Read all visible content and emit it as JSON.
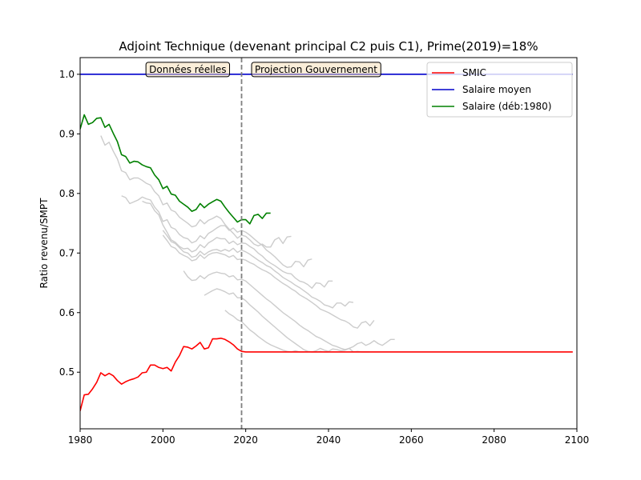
{
  "chart_data": {
    "type": "line",
    "title": "Adjoint Technique (devenant principal C2 puis C1), Prime(2019)=18%",
    "xlabel": "",
    "ylabel": "Ratio revenu/SMPT",
    "xlim": [
      1980,
      2100
    ],
    "ylim": [
      0.405,
      1.028
    ],
    "xticks": [
      1980,
      2000,
      2020,
      2040,
      2060,
      2080,
      2100
    ],
    "yticks": [
      0.5,
      0.6,
      0.7,
      0.8,
      0.9,
      1.0
    ],
    "grid": false,
    "legend_placement": "top-right",
    "vline": {
      "x": 2019,
      "color": "#808080",
      "style": "dashed"
    },
    "annotations": [
      {
        "text": "Données réelles",
        "x": 2006,
        "y": 1.008
      },
      {
        "text": "Projection Gouvernement",
        "x": 2037,
        "y": 1.008
      }
    ],
    "series": [
      {
        "name": "SMIC",
        "color": "#ff0000",
        "x": [
          1980,
          1981,
          1982,
          1983,
          1984,
          1985,
          1986,
          1987,
          1988,
          1989,
          1990,
          1991,
          1992,
          1993,
          1994,
          1995,
          1996,
          1997,
          1998,
          1999,
          2000,
          2001,
          2002,
          2003,
          2004,
          2005,
          2006,
          2007,
          2008,
          2009,
          2010,
          2011,
          2012,
          2013,
          2014,
          2015,
          2016,
          2017,
          2018,
          2019,
          2020,
          2030,
          2040,
          2050,
          2060,
          2070,
          2080,
          2090,
          2099
        ],
        "y": [
          0.435,
          0.462,
          0.463,
          0.472,
          0.483,
          0.499,
          0.494,
          0.498,
          0.494,
          0.486,
          0.48,
          0.484,
          0.487,
          0.489,
          0.492,
          0.499,
          0.5,
          0.512,
          0.512,
          0.508,
          0.506,
          0.508,
          0.502,
          0.517,
          0.528,
          0.543,
          0.542,
          0.539,
          0.544,
          0.55,
          0.539,
          0.541,
          0.556,
          0.556,
          0.557,
          0.555,
          0.551,
          0.546,
          0.539,
          0.535,
          0.534,
          0.534,
          0.534,
          0.534,
          0.534,
          0.534,
          0.534,
          0.534,
          0.534
        ]
      },
      {
        "name": "Salaire moyen",
        "color": "#0000cc",
        "x": [
          1980,
          2099
        ],
        "y": [
          1.0,
          1.0
        ]
      },
      {
        "name": "Salaire (déb:1980)",
        "color": "#008000",
        "x": [
          1980,
          1981,
          1982,
          1983,
          1984,
          1985,
          1986,
          1987,
          1988,
          1989,
          1990,
          1991,
          1992,
          1993,
          1994,
          1995,
          1996,
          1997,
          1998,
          1999,
          2000,
          2001,
          2002,
          2003,
          2004,
          2005,
          2006,
          2007,
          2008,
          2009,
          2010,
          2011,
          2012,
          2013,
          2014,
          2015,
          2016,
          2017,
          2018,
          2019,
          2020,
          2021,
          2022,
          2023,
          2024,
          2025,
          2026
        ],
        "y": [
          0.908,
          0.932,
          0.916,
          0.919,
          0.926,
          0.927,
          0.911,
          0.916,
          0.901,
          0.887,
          0.865,
          0.862,
          0.851,
          0.854,
          0.853,
          0.848,
          0.845,
          0.843,
          0.831,
          0.823,
          0.808,
          0.812,
          0.799,
          0.797,
          0.787,
          0.782,
          0.777,
          0.77,
          0.773,
          0.783,
          0.776,
          0.782,
          0.786,
          0.79,
          0.787,
          0.777,
          0.768,
          0.76,
          0.752,
          0.756,
          0.756,
          0.749,
          0.763,
          0.765,
          0.758,
          0.767,
          0.767
        ]
      },
      {
        "name": "",
        "color": "#cccccc",
        "x": [
          1985,
          1986,
          1987,
          1988,
          1989,
          1990,
          1991,
          1992,
          1993,
          1994,
          1995,
          1996,
          1997,
          1998,
          1999,
          2000,
          2001,
          2002,
          2003,
          2004,
          2005,
          2006,
          2007,
          2008,
          2009,
          2010,
          2011,
          2012,
          2013,
          2014,
          2015,
          2016,
          2017,
          2018,
          2019,
          2020,
          2021,
          2022,
          2023,
          2024,
          2025,
          2026,
          2027,
          2028,
          2029,
          2030,
          2031
        ],
        "y": [
          0.897,
          0.881,
          0.886,
          0.871,
          0.858,
          0.838,
          0.835,
          0.823,
          0.826,
          0.826,
          0.822,
          0.817,
          0.814,
          0.803,
          0.796,
          0.781,
          0.784,
          0.772,
          0.769,
          0.76,
          0.755,
          0.75,
          0.744,
          0.746,
          0.756,
          0.749,
          0.755,
          0.758,
          0.762,
          0.758,
          0.748,
          0.74,
          0.733,
          0.725,
          0.73,
          0.728,
          0.722,
          0.715,
          0.712,
          0.715,
          0.71,
          0.71,
          0.722,
          0.726,
          0.716,
          0.727,
          0.728
        ]
      },
      {
        "name": "",
        "color": "#cccccc",
        "x": [
          1990,
          1991,
          1992,
          1993,
          1994,
          1995,
          1996,
          1997,
          1998,
          1999,
          2000,
          2001,
          2002,
          2003,
          2004,
          2005,
          2006,
          2007,
          2008,
          2009,
          2010,
          2011,
          2012,
          2013,
          2014,
          2015,
          2016,
          2017,
          2018,
          2019,
          2020,
          2021,
          2022,
          2023,
          2024,
          2025,
          2026,
          2027,
          2028,
          2029,
          2030,
          2031,
          2032,
          2033,
          2034,
          2035,
          2036
        ],
        "y": [
          0.796,
          0.793,
          0.783,
          0.786,
          0.789,
          0.794,
          0.791,
          0.789,
          0.777,
          0.769,
          0.753,
          0.756,
          0.743,
          0.74,
          0.731,
          0.726,
          0.724,
          0.717,
          0.72,
          0.729,
          0.724,
          0.733,
          0.737,
          0.742,
          0.746,
          0.746,
          0.738,
          0.742,
          0.735,
          0.738,
          0.735,
          0.73,
          0.724,
          0.718,
          0.713,
          0.705,
          0.7,
          0.694,
          0.687,
          0.68,
          0.676,
          0.677,
          0.686,
          0.685,
          0.677,
          0.688,
          0.69
        ]
      },
      {
        "name": "",
        "color": "#cccccc",
        "x": [
          1995,
          1996,
          1997,
          1998,
          1999,
          2000,
          2001,
          2002,
          2003,
          2004,
          2005,
          2006,
          2007,
          2008,
          2009,
          2010,
          2011,
          2012,
          2013,
          2014,
          2015,
          2016,
          2017,
          2018,
          2019,
          2020,
          2021,
          2022,
          2023,
          2024,
          2025,
          2026,
          2027,
          2028,
          2029,
          2030,
          2031,
          2032,
          2033,
          2034,
          2035,
          2036,
          2037,
          2038,
          2039,
          2040,
          2041
        ],
        "y": [
          0.787,
          0.784,
          0.783,
          0.771,
          0.764,
          0.747,
          0.735,
          0.722,
          0.718,
          0.711,
          0.707,
          0.708,
          0.702,
          0.705,
          0.714,
          0.709,
          0.717,
          0.721,
          0.726,
          0.724,
          0.724,
          0.716,
          0.72,
          0.714,
          0.717,
          0.716,
          0.711,
          0.707,
          0.7,
          0.695,
          0.688,
          0.683,
          0.679,
          0.674,
          0.669,
          0.666,
          0.665,
          0.658,
          0.653,
          0.651,
          0.647,
          0.641,
          0.65,
          0.649,
          0.643,
          0.653,
          0.653
        ]
      },
      {
        "name": "",
        "color": "#cccccc",
        "x": [
          2000,
          2001,
          2002,
          2003,
          2004,
          2005,
          2006,
          2007,
          2008,
          2009,
          2010,
          2011,
          2012,
          2013,
          2014,
          2015,
          2016,
          2017,
          2018,
          2019,
          2020,
          2021,
          2022,
          2023,
          2024,
          2025,
          2026,
          2027,
          2028,
          2029,
          2030,
          2031,
          2032,
          2033,
          2034,
          2035,
          2036,
          2037,
          2038,
          2039,
          2040,
          2041,
          2042,
          2043,
          2044,
          2045,
          2046
        ],
        "y": [
          0.738,
          0.729,
          0.719,
          0.716,
          0.709,
          0.702,
          0.7,
          0.693,
          0.695,
          0.703,
          0.697,
          0.702,
          0.705,
          0.706,
          0.703,
          0.706,
          0.703,
          0.708,
          0.701,
          0.705,
          0.702,
          0.698,
          0.693,
          0.688,
          0.684,
          0.679,
          0.676,
          0.67,
          0.665,
          0.659,
          0.655,
          0.651,
          0.646,
          0.642,
          0.637,
          0.632,
          0.626,
          0.623,
          0.619,
          0.613,
          0.611,
          0.608,
          0.616,
          0.616,
          0.611,
          0.618,
          0.617
        ]
      },
      {
        "name": "",
        "color": "#cccccc",
        "x": [
          2000,
          2001,
          2002,
          2003,
          2004,
          2005,
          2006,
          2007,
          2008,
          2009,
          2010,
          2011,
          2012,
          2013,
          2014,
          2015,
          2016,
          2017,
          2018,
          2019,
          2020,
          2021,
          2022,
          2023,
          2024,
          2025,
          2026,
          2027,
          2028,
          2029,
          2030,
          2031,
          2032,
          2033,
          2034,
          2035,
          2036,
          2037,
          2038,
          2039,
          2040,
          2041,
          2042,
          2043,
          2044,
          2045,
          2046,
          2047,
          2048,
          2049,
          2050,
          2051
        ],
        "y": [
          0.73,
          0.721,
          0.711,
          0.708,
          0.7,
          0.696,
          0.693,
          0.687,
          0.689,
          0.697,
          0.691,
          0.697,
          0.7,
          0.701,
          0.699,
          0.697,
          0.693,
          0.696,
          0.689,
          0.69,
          0.688,
          0.684,
          0.681,
          0.676,
          0.672,
          0.669,
          0.665,
          0.659,
          0.654,
          0.649,
          0.645,
          0.64,
          0.636,
          0.63,
          0.626,
          0.622,
          0.617,
          0.612,
          0.606,
          0.603,
          0.6,
          0.596,
          0.592,
          0.588,
          0.586,
          0.582,
          0.576,
          0.574,
          0.583,
          0.585,
          0.578,
          0.587
        ]
      },
      {
        "name": "",
        "color": "#cccccc",
        "x": [
          2005,
          2006,
          2007,
          2008,
          2009,
          2010,
          2011,
          2012,
          2013,
          2014,
          2015,
          2016,
          2017,
          2018,
          2019,
          2020,
          2021,
          2022,
          2023,
          2024,
          2025,
          2026,
          2027,
          2028,
          2029,
          2030,
          2031,
          2032,
          2033,
          2034,
          2035,
          2036,
          2037,
          2038,
          2039,
          2040,
          2041,
          2042,
          2043,
          2044,
          2045,
          2046,
          2047,
          2048,
          2049,
          2050,
          2051,
          2052,
          2053,
          2054,
          2055,
          2056
        ],
        "y": [
          0.67,
          0.66,
          0.654,
          0.655,
          0.662,
          0.657,
          0.663,
          0.666,
          0.668,
          0.666,
          0.665,
          0.66,
          0.662,
          0.655,
          0.656,
          0.653,
          0.647,
          0.641,
          0.635,
          0.629,
          0.623,
          0.618,
          0.612,
          0.606,
          0.6,
          0.595,
          0.59,
          0.585,
          0.579,
          0.574,
          0.57,
          0.565,
          0.56,
          0.557,
          0.553,
          0.549,
          0.545,
          0.543,
          0.54,
          0.538,
          0.54,
          0.543,
          0.548,
          0.55,
          0.545,
          0.548,
          0.553,
          0.548,
          0.545,
          0.55,
          0.555,
          0.555
        ]
      },
      {
        "name": "",
        "color": "#cccccc",
        "x": [
          2010,
          2011,
          2012,
          2013,
          2014,
          2015,
          2016,
          2017,
          2018,
          2019,
          2020,
          2021,
          2022,
          2023,
          2024,
          2025,
          2026,
          2027,
          2028,
          2029,
          2030,
          2031,
          2032,
          2033,
          2034,
          2035,
          2036,
          2037,
          2038,
          2039,
          2040,
          2041,
          2042,
          2043,
          2044,
          2045,
          2046,
          2047,
          2048,
          2049,
          2050
        ],
        "y": [
          0.629,
          0.633,
          0.637,
          0.64,
          0.638,
          0.635,
          0.631,
          0.633,
          0.625,
          0.625,
          0.62,
          0.613,
          0.607,
          0.601,
          0.594,
          0.588,
          0.582,
          0.576,
          0.57,
          0.564,
          0.558,
          0.553,
          0.548,
          0.543,
          0.538,
          0.535,
          0.534,
          0.536,
          0.54,
          0.537,
          0.535,
          0.539,
          0.538,
          0.536,
          0.537,
          0.54,
          0.534,
          0.535,
          0.534,
          0.534,
          0.534
        ]
      },
      {
        "name": "",
        "color": "#cccccc",
        "x": [
          2015,
          2016,
          2017,
          2018,
          2019,
          2020,
          2021,
          2022,
          2023,
          2024,
          2025,
          2026,
          2027,
          2028,
          2029,
          2030,
          2031,
          2032,
          2033,
          2034,
          2035,
          2036,
          2037,
          2038,
          2039,
          2040
        ],
        "y": [
          0.604,
          0.598,
          0.594,
          0.588,
          0.585,
          0.578,
          0.571,
          0.566,
          0.56,
          0.555,
          0.55,
          0.546,
          0.543,
          0.54,
          0.537,
          0.535,
          0.534,
          0.536,
          0.534,
          0.534,
          0.535,
          0.534,
          0.534,
          0.535,
          0.534,
          0.534
        ]
      }
    ],
    "legend": [
      {
        "label": "SMIC",
        "color": "#ff0000"
      },
      {
        "label": "Salaire moyen",
        "color": "#0000cc"
      },
      {
        "label": "Salaire (déb:1980)",
        "color": "#008000"
      }
    ]
  }
}
